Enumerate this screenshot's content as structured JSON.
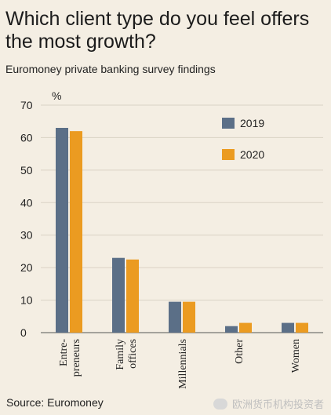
{
  "chart_data": {
    "type": "bar",
    "title": "Which client type do you feel offers the most growth?",
    "subtitle": "Euromoney private banking survey findings",
    "unit_label": "%",
    "categories": [
      "Entre-\npreneurs",
      "Family\noffices",
      "Millennials",
      "Other",
      "Women"
    ],
    "series": [
      {
        "name": "2019",
        "color": "#5b6f87",
        "values": [
          63,
          23,
          9.5,
          2,
          3
        ]
      },
      {
        "name": "2020",
        "color": "#eb9b21",
        "values": [
          62,
          22.5,
          9.5,
          3,
          3
        ]
      }
    ],
    "ylim": [
      0,
      70
    ],
    "yticks": [
      0,
      10,
      20,
      30,
      40,
      50,
      60,
      70
    ],
    "grid": true,
    "legend_position": "top-right",
    "source": "Source: Euromoney"
  },
  "watermark": "欧洲货币机构投资者"
}
